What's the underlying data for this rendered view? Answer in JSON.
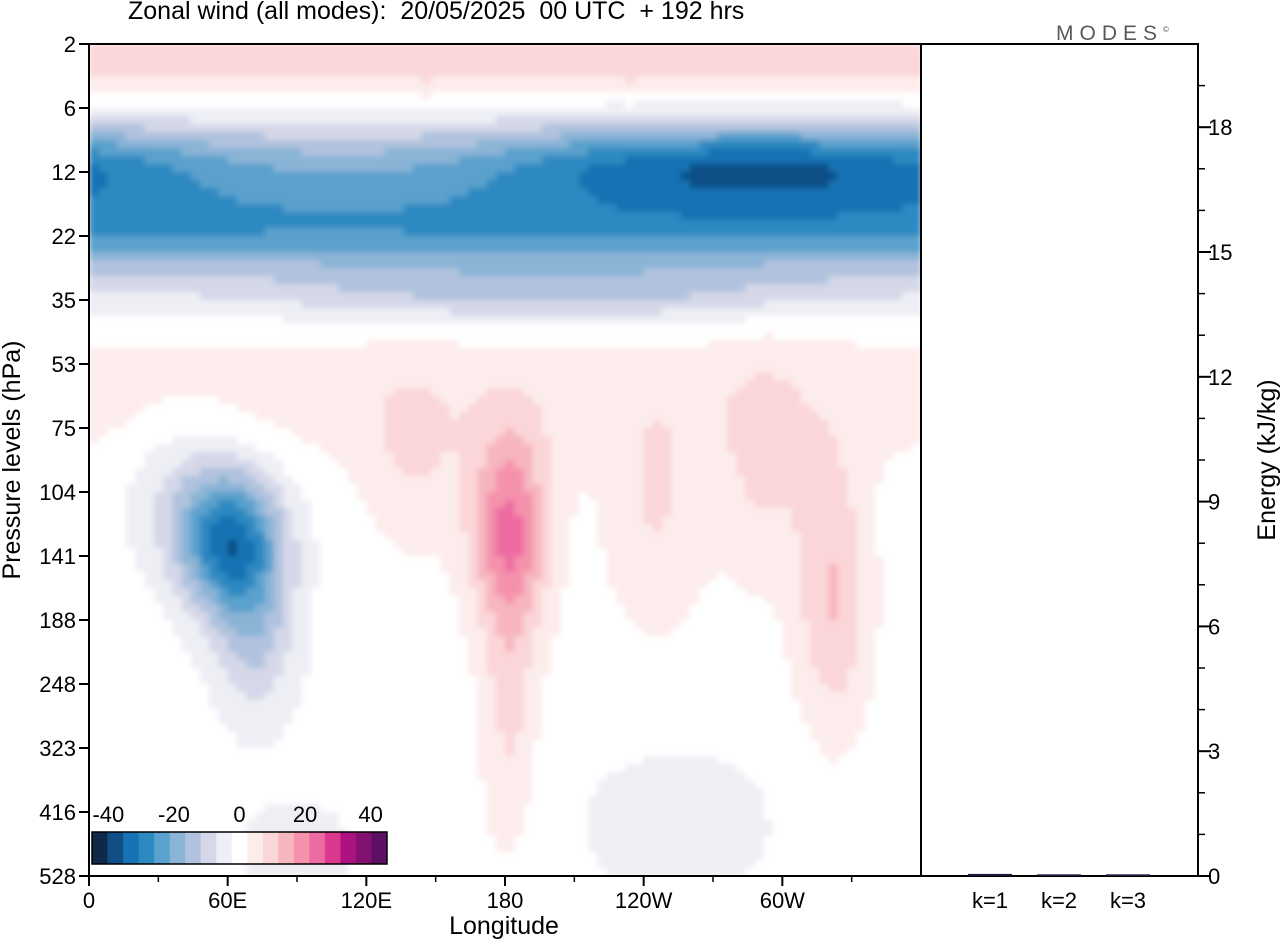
{
  "header": {
    "title": "Zonal wind (all modes):  20/05/2025  00 UTC  + 192 hrs",
    "logo": "MODES",
    "logo_mark": "©"
  },
  "colors": {
    "scale": [
      "#0d2a4a",
      "#0f4f86",
      "#1572b3",
      "#2f89c1",
      "#5aa1cd",
      "#8ab4d6",
      "#b0c2de",
      "#d4d8e8",
      "#eeeff5",
      "#ffffff",
      "#fdecec",
      "#fbd6d8",
      "#f7b6be",
      "#f492ac",
      "#ee6aa2",
      "#d9398f",
      "#ad137f",
      "#821170",
      "#5c0f63"
    ],
    "frame": "#000000"
  },
  "chart_data": [
    {
      "type": "heatmap",
      "title": "Zonal wind (all modes):  20/05/2025  00 UTC  + 192 hrs",
      "xlabel": "Longitude",
      "ylabel": "Pressure levels (hPa)",
      "xticks": [
        "0",
        "60E",
        "120E",
        "180",
        "120W",
        "60W"
      ],
      "x_tick_deg": [
        0,
        60,
        120,
        180,
        240,
        300
      ],
      "xlim": [
        0,
        360
      ],
      "yticks": [
        "2",
        "6",
        "12",
        "22",
        "35",
        "53",
        "75",
        "104",
        "141",
        "188",
        "248",
        "323",
        "416",
        "528"
      ],
      "colorbar": {
        "labels": [
          "-40",
          "-20",
          "0",
          "20",
          "40"
        ],
        "values": [
          -40,
          -20,
          0,
          20,
          40
        ],
        "range": [
          -45,
          45
        ]
      },
      "features": [
        {
          "lon": 180,
          "level_index": 0.3,
          "value": 18
        },
        {
          "lon": 20,
          "level_index": 0.2,
          "value": 12
        },
        {
          "lon": 180,
          "level_index": 1.8,
          "value": -34
        },
        {
          "lon": 300,
          "level_index": 1.9,
          "value": -35
        },
        {
          "lon": 60,
          "level_index": 2.4,
          "value": -28
        },
        {
          "lon": 180,
          "level_index": 3.3,
          "value": -20
        },
        {
          "lon": 60,
          "level_index": 8.0,
          "value": -28
        },
        {
          "lon": 182,
          "level_index": 7.8,
          "value": 22
        },
        {
          "lon": 320,
          "level_index": 8.5,
          "value": 12
        },
        {
          "lon": 290,
          "level_index": 6.7,
          "value": 9
        },
        {
          "lon": 250,
          "level_index": 7.5,
          "value": 7
        }
      ]
    },
    {
      "type": "bar",
      "ylabel": "Energy (kJ/kg)",
      "categories": [
        "k=1",
        "k=2",
        "k=3"
      ],
      "values": [
        0.05,
        0.04,
        0.04
      ],
      "ylim": [
        0,
        20
      ],
      "yticks": [
        "0",
        "3",
        "6",
        "9",
        "12",
        "15",
        "18"
      ]
    }
  ]
}
